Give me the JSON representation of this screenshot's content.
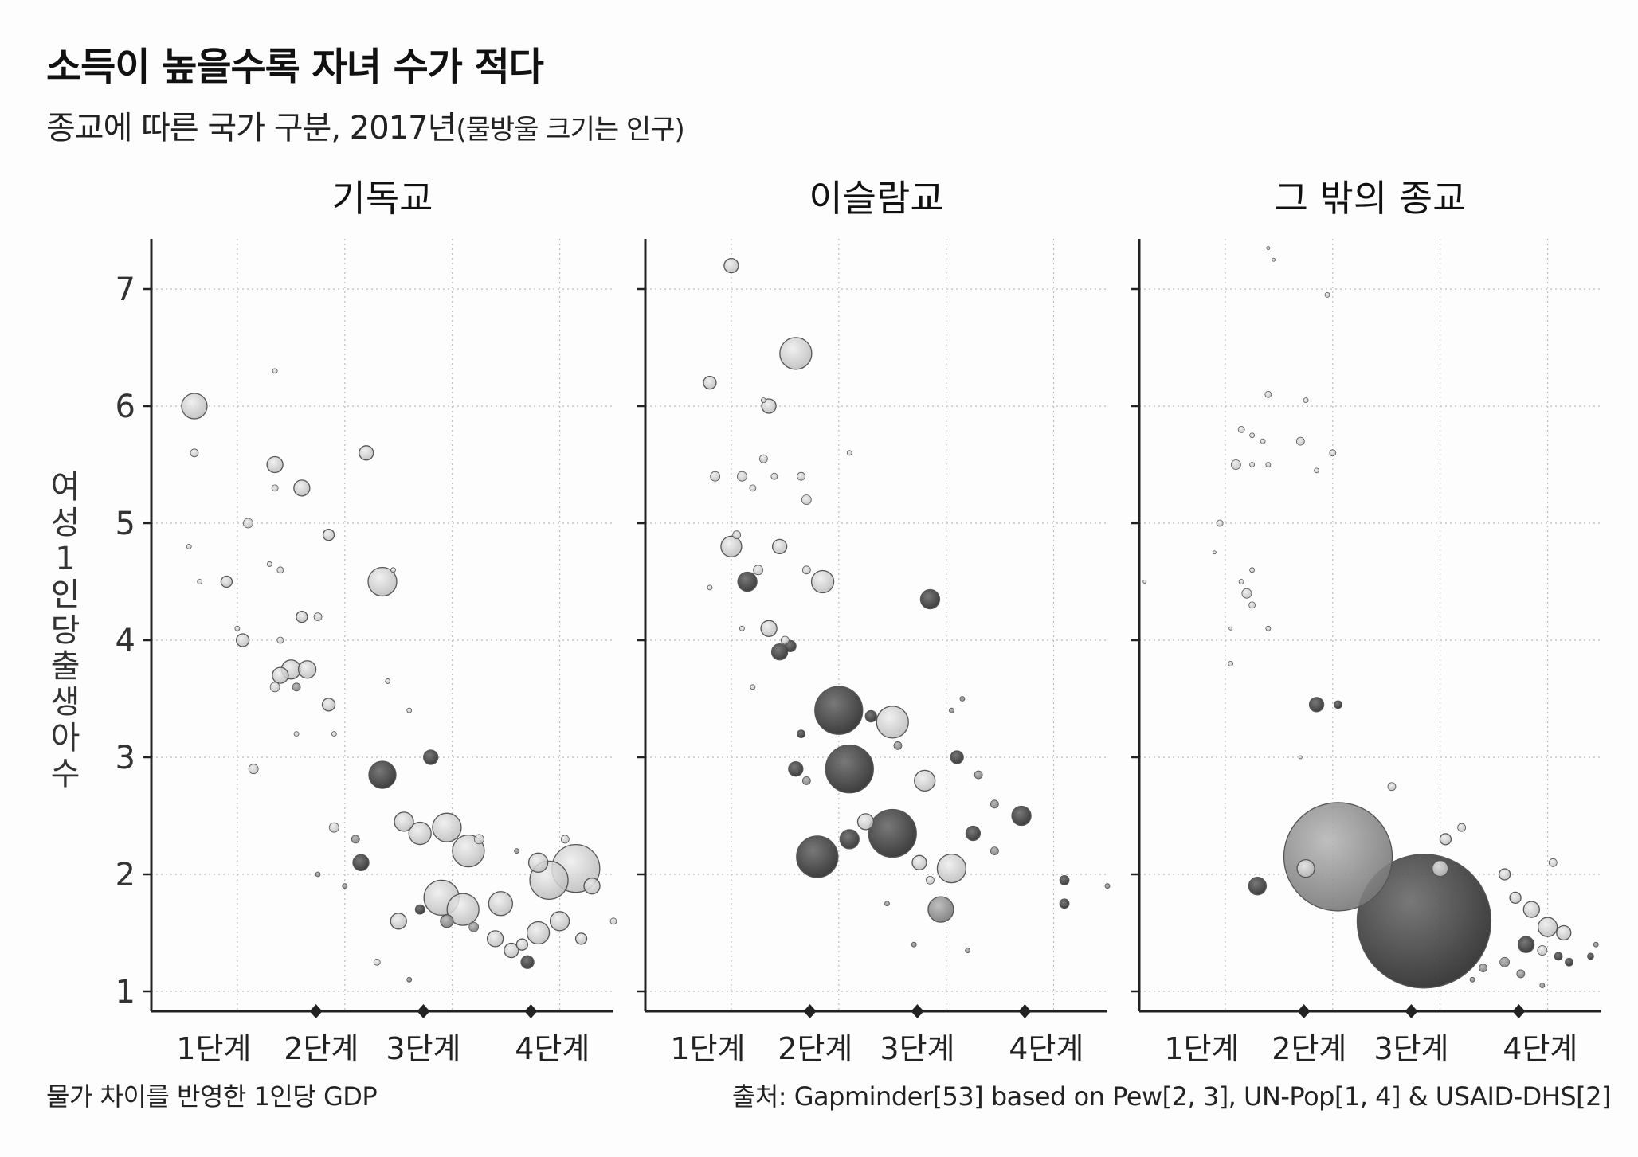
{
  "title": "소득이 높을수록 자녀 수가 적다",
  "subtitle": "종교에 따른 국가 구분, 2017년",
  "subtitle_note": "(물방울 크기는 인구)",
  "footer": {
    "xlabel": "물가 차이를 반영한 1인당 GDP",
    "source": "출처: Gapminder[53] based on Pew[2, 3], UN-Pop[1, 4] & USAID-DHS[2]"
  },
  "colors": {
    "axis": "#222222",
    "grid": "#bdbdbd",
    "light_bubble": "#c9c9c9",
    "mid_bubble": "#8f8f8f",
    "dark_bubble": "#3a3a3a"
  },
  "chart_data": {
    "type": "scatter",
    "ylabel": "여성 1인당 출생아 수",
    "ylim": [
      1,
      7.4
    ],
    "y_ticks": [
      1,
      2,
      3,
      4,
      5,
      6,
      7
    ],
    "x_categories": [
      "1단계",
      "2단계",
      "3단계",
      "4단계"
    ],
    "x_range": [
      0.7,
      5
    ],
    "grid": true,
    "panels": [
      {
        "title": "기독교",
        "points": [
          [
            1.1,
            6.0,
            16,
            "l"
          ],
          [
            1.1,
            5.6,
            5,
            "l"
          ],
          [
            1.05,
            4.8,
            3,
            "l"
          ],
          [
            1.15,
            4.5,
            3,
            "l"
          ],
          [
            1.4,
            4.5,
            7,
            "l"
          ],
          [
            1.6,
            5.0,
            6,
            "l"
          ],
          [
            1.85,
            5.5,
            10,
            "l"
          ],
          [
            1.85,
            5.3,
            4,
            "l"
          ],
          [
            1.85,
            6.3,
            3,
            "l"
          ],
          [
            2.1,
            5.3,
            10,
            "l"
          ],
          [
            2.35,
            4.9,
            7,
            "l"
          ],
          [
            2.7,
            5.6,
            9,
            "l"
          ],
          [
            1.9,
            4.6,
            4,
            "l"
          ],
          [
            1.8,
            4.65,
            3,
            "l"
          ],
          [
            1.55,
            4.0,
            8,
            "l"
          ],
          [
            1.5,
            4.1,
            3,
            "l"
          ],
          [
            1.9,
            4.0,
            4,
            "l"
          ],
          [
            2.1,
            4.2,
            7,
            "l"
          ],
          [
            2.25,
            4.2,
            5,
            "l"
          ],
          [
            2.85,
            4.5,
            18,
            "l"
          ],
          [
            2.95,
            4.6,
            3,
            "l"
          ],
          [
            1.9,
            3.7,
            10,
            "l"
          ],
          [
            2.0,
            3.75,
            12,
            "l"
          ],
          [
            2.05,
            3.6,
            5,
            "m"
          ],
          [
            2.15,
            3.75,
            11,
            "l"
          ],
          [
            1.85,
            3.6,
            6,
            "l"
          ],
          [
            2.35,
            3.45,
            8,
            "l"
          ],
          [
            1.65,
            2.9,
            6,
            "l"
          ],
          [
            2.05,
            3.2,
            3,
            "l"
          ],
          [
            2.4,
            3.2,
            3,
            "l"
          ],
          [
            2.9,
            3.65,
            3,
            "l"
          ],
          [
            3.1,
            3.4,
            3,
            "l"
          ],
          [
            2.85,
            2.85,
            17,
            "d"
          ],
          [
            3.3,
            3.0,
            9,
            "d"
          ],
          [
            2.4,
            2.4,
            6,
            "l"
          ],
          [
            2.6,
            2.3,
            5,
            "m"
          ],
          [
            2.65,
            2.1,
            10,
            "d"
          ],
          [
            3.05,
            2.45,
            12,
            "l"
          ],
          [
            3.2,
            2.35,
            14,
            "l"
          ],
          [
            3.45,
            2.4,
            18,
            "l"
          ],
          [
            3.65,
            2.2,
            20,
            "l"
          ],
          [
            3.75,
            2.3,
            6,
            "l"
          ],
          [
            3.4,
            1.8,
            22,
            "l"
          ],
          [
            3.6,
            1.7,
            20,
            "l"
          ],
          [
            3.95,
            1.75,
            15,
            "l"
          ],
          [
            3.0,
            1.6,
            10,
            "l"
          ],
          [
            3.2,
            1.7,
            6,
            "d"
          ],
          [
            3.45,
            1.6,
            8,
            "m"
          ],
          [
            3.7,
            1.55,
            6,
            "m"
          ],
          [
            3.9,
            1.45,
            10,
            "l"
          ],
          [
            4.05,
            1.35,
            9,
            "l"
          ],
          [
            4.15,
            1.4,
            7,
            "l"
          ],
          [
            4.2,
            1.25,
            8,
            "d"
          ],
          [
            4.3,
            1.5,
            14,
            "l"
          ],
          [
            4.5,
            1.6,
            12,
            "l"
          ],
          [
            4.4,
            1.95,
            24,
            "l"
          ],
          [
            4.65,
            2.05,
            30,
            "l"
          ],
          [
            4.8,
            1.9,
            10,
            "l"
          ],
          [
            4.3,
            2.1,
            12,
            "l"
          ],
          [
            4.55,
            2.3,
            5,
            "l"
          ],
          [
            4.7,
            1.45,
            7,
            "l"
          ],
          [
            5.0,
            1.6,
            4,
            "l"
          ],
          [
            2.8,
            1.25,
            4,
            "l"
          ],
          [
            3.1,
            1.1,
            3,
            "m"
          ],
          [
            2.25,
            2.0,
            3,
            "m"
          ],
          [
            2.5,
            1.9,
            3,
            "m"
          ],
          [
            4.1,
            2.2,
            3,
            "m"
          ]
        ]
      },
      {
        "title": "이슬람교",
        "points": [
          [
            1.5,
            7.2,
            9,
            "l"
          ],
          [
            1.3,
            6.2,
            8,
            "l"
          ],
          [
            1.85,
            6.0,
            9,
            "l"
          ],
          [
            1.8,
            6.05,
            3,
            "l"
          ],
          [
            2.1,
            6.45,
            20,
            "l"
          ],
          [
            1.35,
            5.4,
            6,
            "l"
          ],
          [
            1.6,
            5.4,
            6,
            "l"
          ],
          [
            1.8,
            5.55,
            5,
            "l"
          ],
          [
            1.7,
            5.3,
            4,
            "l"
          ],
          [
            1.9,
            5.4,
            4,
            "l"
          ],
          [
            2.15,
            5.4,
            5,
            "l"
          ],
          [
            2.2,
            5.2,
            6,
            "l"
          ],
          [
            2.6,
            5.6,
            3,
            "l"
          ],
          [
            1.5,
            4.8,
            13,
            "l"
          ],
          [
            1.55,
            4.9,
            5,
            "l"
          ],
          [
            1.95,
            4.8,
            9,
            "l"
          ],
          [
            1.75,
            4.6,
            6,
            "l"
          ],
          [
            1.65,
            4.5,
            12,
            "d"
          ],
          [
            2.2,
            4.6,
            5,
            "l"
          ],
          [
            2.35,
            4.5,
            14,
            "l"
          ],
          [
            1.3,
            4.45,
            3,
            "l"
          ],
          [
            1.85,
            4.1,
            10,
            "l"
          ],
          [
            2.0,
            4.0,
            5,
            "l"
          ],
          [
            1.95,
            3.9,
            10,
            "d"
          ],
          [
            2.05,
            3.95,
            7,
            "d"
          ],
          [
            1.6,
            4.1,
            3,
            "l"
          ],
          [
            1.7,
            3.6,
            3,
            "l"
          ],
          [
            2.5,
            3.4,
            30,
            "d"
          ],
          [
            3.0,
            3.3,
            20,
            "l"
          ],
          [
            2.8,
            3.35,
            7,
            "d"
          ],
          [
            2.15,
            3.2,
            5,
            "d"
          ],
          [
            2.6,
            2.9,
            30,
            "d"
          ],
          [
            2.1,
            2.9,
            9,
            "d"
          ],
          [
            2.2,
            2.8,
            5,
            "m"
          ],
          [
            3.35,
            4.35,
            12,
            "d"
          ],
          [
            3.65,
            3.5,
            3,
            "m"
          ],
          [
            3.55,
            3.4,
            3,
            "m"
          ],
          [
            3.05,
            3.1,
            5,
            "m"
          ],
          [
            3.3,
            2.8,
            13,
            "l"
          ],
          [
            3.6,
            3.0,
            8,
            "d"
          ],
          [
            3.8,
            2.85,
            5,
            "m"
          ],
          [
            3.95,
            2.6,
            5,
            "m"
          ],
          [
            4.2,
            2.5,
            12,
            "d"
          ],
          [
            2.3,
            2.15,
            26,
            "d"
          ],
          [
            2.6,
            2.3,
            12,
            "d"
          ],
          [
            2.75,
            2.45,
            10,
            "l"
          ],
          [
            3.0,
            2.35,
            30,
            "d"
          ],
          [
            3.25,
            2.1,
            9,
            "l"
          ],
          [
            3.35,
            1.95,
            5,
            "l"
          ],
          [
            3.45,
            1.7,
            16,
            "m"
          ],
          [
            3.55,
            2.05,
            18,
            "l"
          ],
          [
            3.75,
            2.35,
            9,
            "d"
          ],
          [
            3.95,
            2.2,
            5,
            "m"
          ],
          [
            3.2,
            1.4,
            3,
            "m"
          ],
          [
            3.7,
            1.35,
            3,
            "m"
          ],
          [
            4.6,
            1.95,
            6,
            "d"
          ],
          [
            4.6,
            1.75,
            6,
            "d"
          ],
          [
            5.0,
            1.9,
            3,
            "m"
          ],
          [
            2.95,
            1.75,
            3,
            "m"
          ]
        ]
      },
      {
        "title": "그 밖의 종교",
        "points": [
          [
            1.9,
            7.35,
            2,
            "l"
          ],
          [
            1.95,
            7.25,
            2,
            "l"
          ],
          [
            2.45,
            6.95,
            3,
            "l"
          ],
          [
            1.9,
            6.1,
            4,
            "l"
          ],
          [
            2.25,
            6.05,
            3,
            "l"
          ],
          [
            1.75,
            5.75,
            3,
            "l"
          ],
          [
            1.85,
            5.7,
            3,
            "l"
          ],
          [
            1.65,
            5.8,
            4,
            "l"
          ],
          [
            1.6,
            5.5,
            6,
            "l"
          ],
          [
            1.75,
            5.5,
            3,
            "l"
          ],
          [
            1.9,
            5.5,
            3,
            "l"
          ],
          [
            2.2,
            5.7,
            5,
            "l"
          ],
          [
            2.5,
            5.6,
            4,
            "l"
          ],
          [
            2.35,
            5.45,
            3,
            "l"
          ],
          [
            1.45,
            5.0,
            4,
            "l"
          ],
          [
            1.4,
            4.75,
            2,
            "l"
          ],
          [
            1.75,
            4.6,
            3,
            "l"
          ],
          [
            1.65,
            4.5,
            3,
            "l"
          ],
          [
            1.7,
            4.4,
            6,
            "l"
          ],
          [
            1.75,
            4.3,
            4,
            "l"
          ],
          [
            1.55,
            4.1,
            2,
            "l"
          ],
          [
            1.9,
            4.1,
            3,
            "l"
          ],
          [
            1.55,
            3.8,
            3,
            "l"
          ],
          [
            0.75,
            4.5,
            2,
            "l"
          ],
          [
            2.35,
            3.45,
            9,
            "d"
          ],
          [
            2.55,
            3.45,
            5,
            "d"
          ],
          [
            2.2,
            3.0,
            2,
            "l"
          ],
          [
            1.8,
            1.9,
            11,
            "d"
          ],
          [
            2.25,
            2.05,
            11,
            "l"
          ],
          [
            2.55,
            2.15,
            68,
            "m"
          ],
          [
            3.35,
            1.6,
            84,
            "d"
          ],
          [
            3.05,
            2.75,
            5,
            "l"
          ],
          [
            3.55,
            2.3,
            7,
            "l"
          ],
          [
            3.7,
            2.4,
            5,
            "l"
          ],
          [
            3.5,
            2.05,
            10,
            "l"
          ],
          [
            4.1,
            2.0,
            7,
            "l"
          ],
          [
            4.2,
            1.8,
            7,
            "l"
          ],
          [
            4.35,
            1.7,
            10,
            "l"
          ],
          [
            4.5,
            1.55,
            12,
            "l"
          ],
          [
            4.65,
            1.5,
            9,
            "l"
          ],
          [
            4.3,
            1.4,
            10,
            "d"
          ],
          [
            4.45,
            1.35,
            6,
            "l"
          ],
          [
            4.6,
            1.3,
            5,
            "d"
          ],
          [
            4.7,
            1.25,
            5,
            "d"
          ],
          [
            4.9,
            1.3,
            4,
            "d"
          ],
          [
            4.95,
            1.4,
            3,
            "m"
          ],
          [
            4.1,
            1.25,
            6,
            "m"
          ],
          [
            3.9,
            1.2,
            5,
            "m"
          ],
          [
            3.8,
            1.1,
            3,
            "m"
          ],
          [
            4.25,
            1.15,
            5,
            "m"
          ],
          [
            4.45,
            1.05,
            3,
            "m"
          ],
          [
            4.55,
            2.1,
            5,
            "l"
          ]
        ]
      }
    ]
  }
}
